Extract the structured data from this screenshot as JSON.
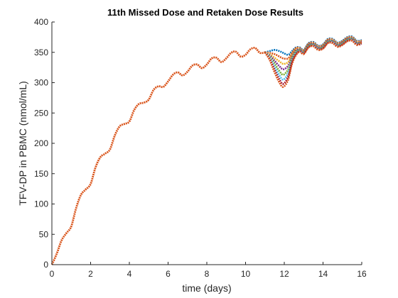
{
  "chart_data": {
    "type": "line",
    "title": "11th Missed Dose and Retaken Dose Results",
    "xlabel": "time (days)",
    "ylabel": "TFV-DP in PBMC (nmol/mL)",
    "xlim": [
      0,
      16
    ],
    "ylim": [
      0,
      400
    ],
    "xticks": [
      0,
      2,
      4,
      6,
      8,
      10,
      12,
      14,
      16
    ],
    "yticks": [
      0,
      50,
      100,
      150,
      200,
      250,
      300,
      350,
      400
    ],
    "grid": false,
    "baseline": {
      "x": [
        0,
        0.25,
        0.5,
        0.75,
        1.0,
        1.25,
        1.5,
        1.75,
        2.0,
        2.25,
        2.5,
        2.75,
        3.0,
        3.25,
        3.5,
        3.75,
        4.0,
        4.25,
        4.5,
        4.75,
        5.0,
        5.25,
        5.5,
        5.75,
        6.0,
        6.25,
        6.5,
        6.75,
        7.0,
        7.25,
        7.5,
        7.75,
        8.0,
        8.25,
        8.5,
        8.75,
        9.0,
        9.25,
        9.5,
        9.75,
        10.0,
        10.25,
        10.5,
        10.75,
        11.0
      ],
      "y": [
        0,
        18,
        40,
        52,
        63,
        93,
        115,
        124,
        133,
        160,
        177,
        183,
        190,
        213,
        228,
        232,
        236,
        255,
        265,
        267,
        272,
        288,
        294,
        293,
        302,
        313,
        317,
        312,
        318,
        328,
        330,
        324,
        330,
        340,
        341,
        334,
        340,
        349,
        351,
        343,
        346,
        355,
        357,
        349,
        350
      ]
    },
    "scenarios": {
      "x": [
        11.0,
        11.25,
        11.5,
        11.75,
        11.95,
        12.2,
        12.4,
        12.6,
        12.8,
        13.0,
        13.25,
        13.5,
        13.75,
        14.0,
        14.25,
        14.5,
        14.75,
        15.0,
        15.25,
        15.5,
        15.75,
        16.0
      ],
      "retake_days": [
        11.2,
        11.35,
        11.5,
        11.6,
        11.7,
        11.8,
        11.9,
        12.0
      ],
      "colors": [
        "#0072BD",
        "#D95319",
        "#EDB120",
        "#7E2F8E",
        "#77AC30",
        "#4DBEEE",
        "#A2142F",
        "#D95319"
      ],
      "final_offsets": [
        6,
        5,
        4,
        3,
        2,
        1,
        0,
        -1
      ],
      "series": [
        {
          "y": [
            350,
            352,
            354,
            352,
            349,
            346,
            352,
            358,
            358,
            354,
            365,
            367,
            361,
            363,
            372,
            372,
            366,
            369,
            375,
            376,
            369,
            370
          ]
        },
        {
          "y": [
            350,
            349,
            347,
            343,
            340,
            340,
            349,
            357,
            357,
            353,
            364,
            366,
            360,
            362,
            371,
            371,
            365,
            368,
            374,
            375,
            368,
            369
          ]
        },
        {
          "y": [
            350,
            347,
            341,
            335,
            331,
            334,
            346,
            355,
            356,
            352,
            363,
            365,
            359,
            361,
            370,
            370,
            364,
            367,
            373,
            374,
            367,
            368
          ]
        },
        {
          "y": [
            350,
            345,
            336,
            327,
            322,
            328,
            343,
            353,
            355,
            351,
            362,
            364,
            358,
            360,
            369,
            369,
            363,
            366,
            372,
            373,
            366,
            367
          ]
        },
        {
          "y": [
            350,
            343,
            331,
            319,
            313,
            322,
            340,
            351,
            354,
            350,
            361,
            363,
            357,
            359,
            368,
            368,
            362,
            365,
            371,
            372,
            365,
            366
          ]
        },
        {
          "y": [
            350,
            341,
            326,
            312,
            305,
            316,
            337,
            349,
            353,
            349,
            360,
            362,
            356,
            358,
            367,
            367,
            361,
            364,
            370,
            371,
            364,
            365
          ]
        },
        {
          "y": [
            350,
            339,
            321,
            305,
            298,
            310,
            334,
            347,
            352,
            348,
            359,
            361,
            355,
            357,
            366,
            366,
            360,
            363,
            369,
            370,
            363,
            364
          ]
        },
        {
          "y": [
            350,
            337,
            317,
            300,
            293,
            305,
            331,
            345,
            351,
            347,
            358,
            360,
            354,
            356,
            365,
            365,
            359,
            362,
            368,
            369,
            362,
            367
          ]
        }
      ]
    }
  }
}
